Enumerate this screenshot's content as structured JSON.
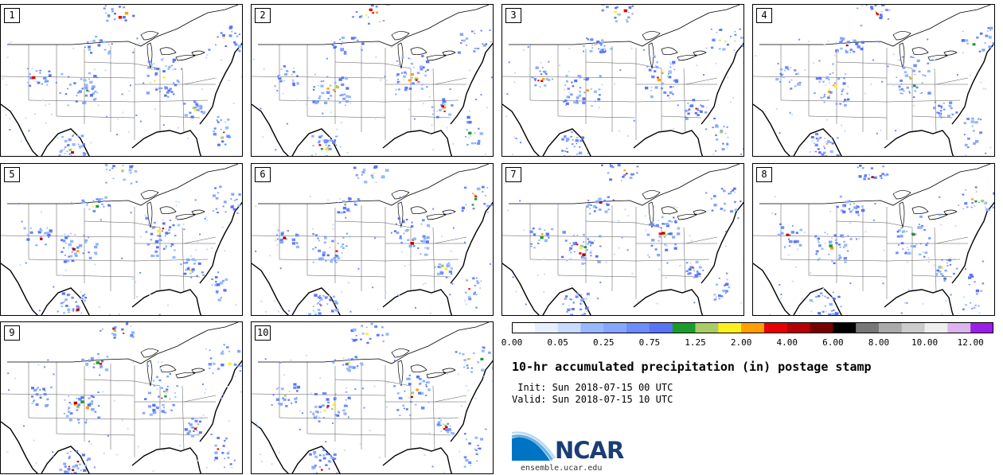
{
  "panels": [
    {
      "label": "1"
    },
    {
      "label": "2"
    },
    {
      "label": "3"
    },
    {
      "label": "4"
    },
    {
      "label": "5"
    },
    {
      "label": "6"
    },
    {
      "label": "7"
    },
    {
      "label": "8"
    },
    {
      "label": "9"
    },
    {
      "label": "10"
    }
  ],
  "colorbar": {
    "colors": [
      "#ffffff",
      "#e6f0ff",
      "#c8dcff",
      "#96b9ff",
      "#87a6ff",
      "#6c8cff",
      "#5a73f5",
      "#1a9c2c",
      "#aacc66",
      "#ffee1e",
      "#ff9f00",
      "#e60000",
      "#b40000",
      "#7a0000",
      "#000000",
      "#777777",
      "#aaaaaa",
      "#cccccc",
      "#eeeeee",
      "#dcb4f0",
      "#9b1ee6"
    ],
    "tick_labels": [
      "0.00",
      "0.05",
      "0.25",
      "0.75",
      "1.25",
      "2.00",
      "4.00",
      "6.00",
      "8.00",
      "10.00",
      "12.00"
    ]
  },
  "title": "10-hr accumulated precipitation (in) postage stamp",
  "init_text": " Init: Sun 2018-07-15 00 UTC",
  "valid_text": "Valid: Sun 2018-07-15 10 UTC",
  "logo_text": "NCAR",
  "site_text": "ensemble.ucar.edu"
}
